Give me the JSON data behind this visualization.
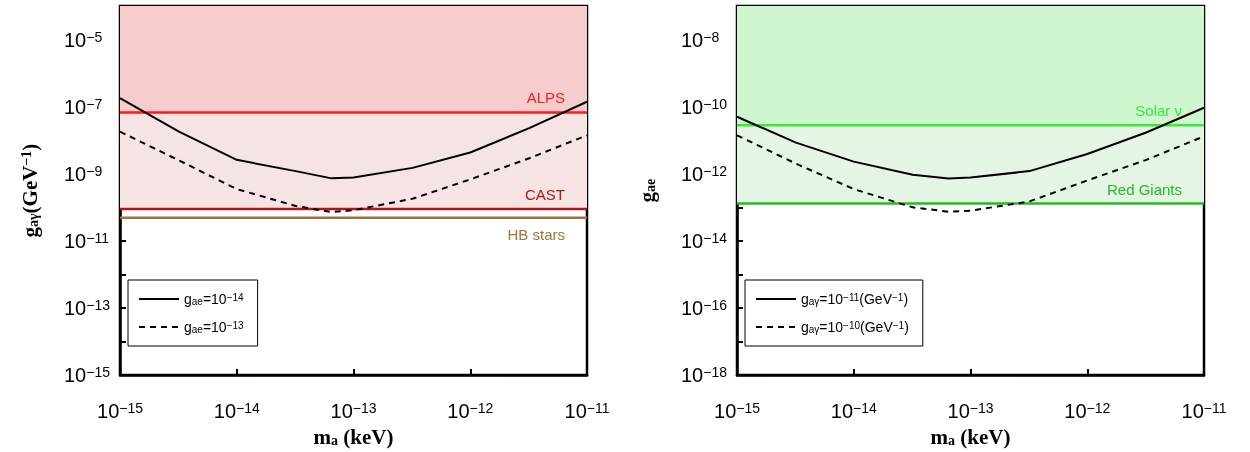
{
  "chart_data": [
    {
      "type": "line",
      "xlabel": "m$_{a}$ (keV)",
      "ylabel": "g$_{aγ}$(GeV$^{−1}$)",
      "log": "xy",
      "grid": false,
      "legend": "bottom left",
      "marker": "none",
      "x": [
        1e-15,
        3.2e-15,
        1e-14,
        3.2e-14,
        6.5e-14,
        1e-13,
        3.2e-13,
        1e-12,
        3.2e-12,
        1e-11
      ],
      "series": [
        {
          "name": "g$_{ae}$=10$^{−14}$",
          "color": "#000000",
          "line_style": "solid",
          "values": [
            1.8e-07,
            1.8e-08,
            2.6e-09,
            1.2e-09,
            7.3e-10,
            7.7e-10,
            1.5e-09,
            4.3e-09,
            2.3e-08,
            1.4e-07
          ]
        },
        {
          "name": "g$_{ae}$=10$^{−13}$",
          "color": "#000000",
          "line_style": "dashed",
          "values": [
            1.8e-08,
            2.5e-09,
            3.5e-10,
            1.1e-10,
            7.2e-11,
            8.2e-11,
            1.8e-10,
            6.8e-10,
            2.9e-09,
            1.4e-08
          ]
        }
      ],
      "xlim": [
        1e-15,
        1e-11
      ],
      "xticks": [
        {
          "value": 1e-15,
          "label": "10$^{−15}$"
        },
        {
          "value": 1e-14,
          "label": "10$^{−14}$"
        },
        {
          "value": 1e-13,
          "label": "10$^{−13}$"
        },
        {
          "value": 1e-12,
          "label": "10$^{−12}$"
        },
        {
          "value": 1e-11,
          "label": "10$^{−11}$"
        }
      ],
      "ylim": [
        1e-15,
        0.0001
      ],
      "yticks": [
        {
          "value": 1e-15,
          "label": "10$^{−15}$"
        },
        {
          "value": 1e-14,
          "label": null
        },
        {
          "value": 1e-13,
          "label": "10$^{−13}$"
        },
        {
          "value": 1e-12,
          "label": null
        },
        {
          "value": 1e-11,
          "label": "10$^{−11}$"
        },
        {
          "value": 1e-10,
          "label": null
        },
        {
          "value": 1e-09,
          "label": "10$^{−9}$"
        },
        {
          "value": 1e-08,
          "label": null
        },
        {
          "value": 1e-07,
          "label": "10$^{−7}$"
        },
        {
          "value": 1e-06,
          "label": null
        },
        {
          "value": 1e-05,
          "label": "10$^{−5}$"
        }
      ],
      "ref_lines": [
        {
          "axis": "y",
          "value": 6.7e-08,
          "label": "ALPS",
          "color": "#ff1a1a"
        },
        {
          "axis": "y",
          "value": 8.9e-11,
          "label": "CAST",
          "color": "#b01818"
        },
        {
          "axis": "y",
          "value": 4.9e-11,
          "label": "HB stars",
          "color": "#a8703a"
        }
      ],
      "bands": [
        {
          "axis": "y",
          "from": 6.7e-08,
          "to": 0.0001,
          "color": "#f6cccc"
        },
        {
          "axis": "y",
          "from": 8.9e-11,
          "to": 6.7e-08,
          "color": "#f6e4e4"
        }
      ]
    },
    {
      "type": "line",
      "xlabel": "m$_{a}$ (keV)",
      "ylabel": "g$_{ae}$",
      "log": "xy",
      "grid": false,
      "legend": "bottom left",
      "marker": "none",
      "x": [
        1e-15,
        3.2e-15,
        1e-14,
        3.2e-14,
        6.5e-14,
        1e-13,
        3.2e-13,
        1e-12,
        3.2e-12,
        1e-11
      ],
      "series": [
        {
          "name": "g$_{aγ}$=10$^{−11}$(GeV$^{−1}$)",
          "color": "#000000",
          "line_style": "solid",
          "values": [
            5e-11,
            8.5e-12,
            2.3e-12,
            9.3e-13,
            7.2e-13,
            7.7e-13,
            1.2e-12,
            3.9e-12,
            1.7e-11,
            9.3e-11
          ]
        },
        {
          "name": "g$_{aγ}$=10$^{−10}$(GeV$^{−1}$)",
          "color": "#000000",
          "line_style": "dashed",
          "values": [
            1.4e-11,
            2e-12,
            3.5e-13,
            1e-13,
            7.4e-14,
            7.9e-14,
            1.5e-13,
            6.3e-13,
            2.6e-12,
            1.3e-11
          ]
        }
      ],
      "xlim": [
        1e-15,
        1e-11
      ],
      "xticks": [
        {
          "value": 1e-15,
          "label": "10$^{−15}$"
        },
        {
          "value": 1e-14,
          "label": "10$^{−14}$"
        },
        {
          "value": 1e-13,
          "label": "10$^{−13}$"
        },
        {
          "value": 1e-12,
          "label": "10$^{−12}$"
        },
        {
          "value": 1e-11,
          "label": "10$^{−11}$"
        }
      ],
      "ylim": [
        1e-18,
        1e-07
      ],
      "yticks": [
        {
          "value": 1e-18,
          "label": "10$^{−18}$"
        },
        {
          "value": 1e-17,
          "label": null
        },
        {
          "value": 1e-16,
          "label": "10$^{−16}$"
        },
        {
          "value": 1e-15,
          "label": null
        },
        {
          "value": 1e-14,
          "label": "10$^{−14}$"
        },
        {
          "value": 1e-13,
          "label": null
        },
        {
          "value": 1e-12,
          "label": "10$^{−12}$"
        },
        {
          "value": 1e-11,
          "label": null
        },
        {
          "value": 1e-10,
          "label": "10$^{−10}$"
        },
        {
          "value": 1e-09,
          "label": null
        },
        {
          "value": 1e-08,
          "label": "10$^{−8}$"
        }
      ],
      "ref_lines": [
        {
          "axis": "y",
          "value": 2.8e-11,
          "label": "Solar ν",
          "color": "#33ee33"
        },
        {
          "axis": "y",
          "value": 1.3e-13,
          "label": "Red Giants",
          "color": "#22bb22"
        }
      ],
      "bands": [
        {
          "axis": "y",
          "from": 2.8e-11,
          "to": 1e-07,
          "color": "#cff6cf"
        },
        {
          "axis": "y",
          "from": 1.3e-13,
          "to": 2.8e-11,
          "color": "#e4f5e4"
        }
      ]
    }
  ]
}
